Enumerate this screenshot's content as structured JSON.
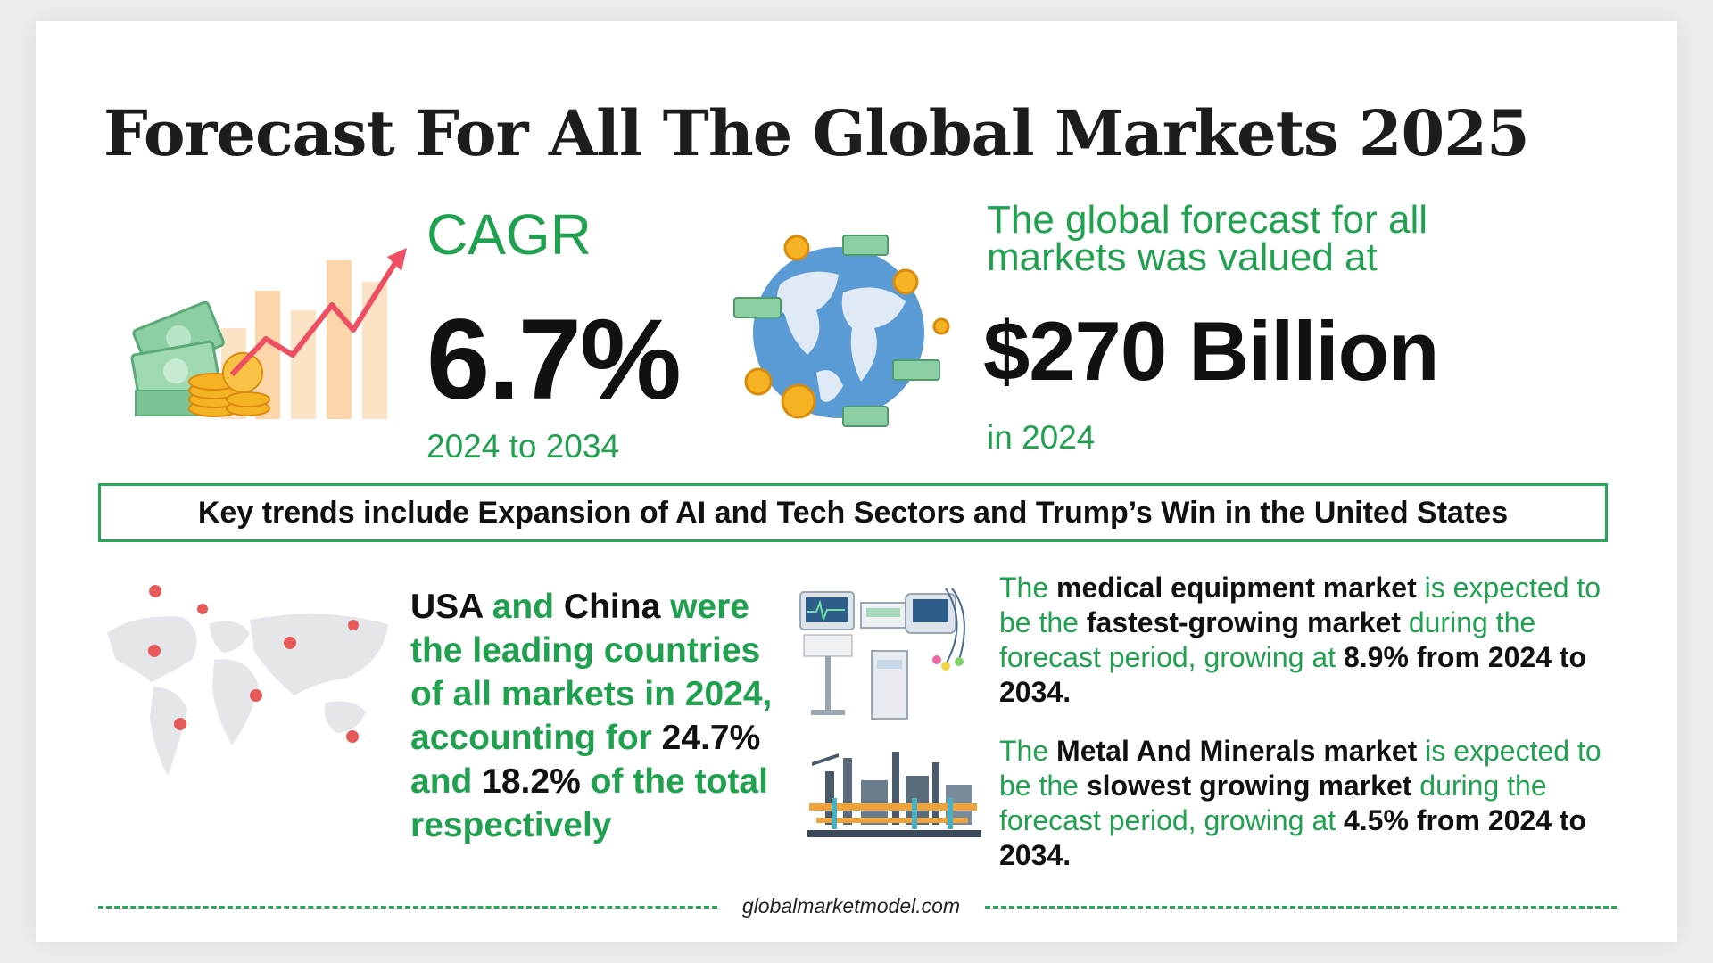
{
  "title": "Forecast For All The Global Markets 2025",
  "cagr": {
    "label": "CAGR",
    "value": "6.7%",
    "period": "2024 to 2034"
  },
  "valuation": {
    "intro": "The global forecast for all markets was valued at",
    "value": "$270 Billion",
    "year": "in 2024"
  },
  "key_trends": "Key trends include Expansion of AI and Tech Sectors and Trump’s Win in the United States",
  "leaders": {
    "usa": "USA",
    "and1": " and ",
    "china": "China",
    "text1": " were the leading countries of all markets in 2024, accounting for ",
    "usa_share": "24.7%",
    "and2": " and ",
    "china_share": "18.2%",
    "of": " of",
    "text2": " the total respectively"
  },
  "medical": {
    "the": "The ",
    "name": "medical equipment market",
    "is_expected": " is expected to be the ",
    "status": "fastest-growing market",
    "during": " during the forecast period, growing at ",
    "growth": "8.9% from 2024 to 2034."
  },
  "metal": {
    "the": "The ",
    "name": "Metal And Minerals market",
    "is_expected": " is expected to be the ",
    "status": "slowest growing market",
    "during": " during the forecast period, growing at ",
    "growth": "4.5% from 2024 to 2034."
  },
  "footer": "globalmarketmodel.com",
  "colors": {
    "accent_green": "#1fa14f",
    "box_green": "#2aa65a",
    "heading": "#1d1d1d",
    "bar_peach": "#fbcf9f",
    "arrow_red": "#ee4f63",
    "globe_blue": "#5b9bd5",
    "coin_gold": "#f5b324"
  },
  "icons": [
    "cash-growth-chart-icon",
    "globe-money-icon",
    "world-map-pins-icon",
    "medical-equipment-icon",
    "industrial-plant-icon"
  ]
}
